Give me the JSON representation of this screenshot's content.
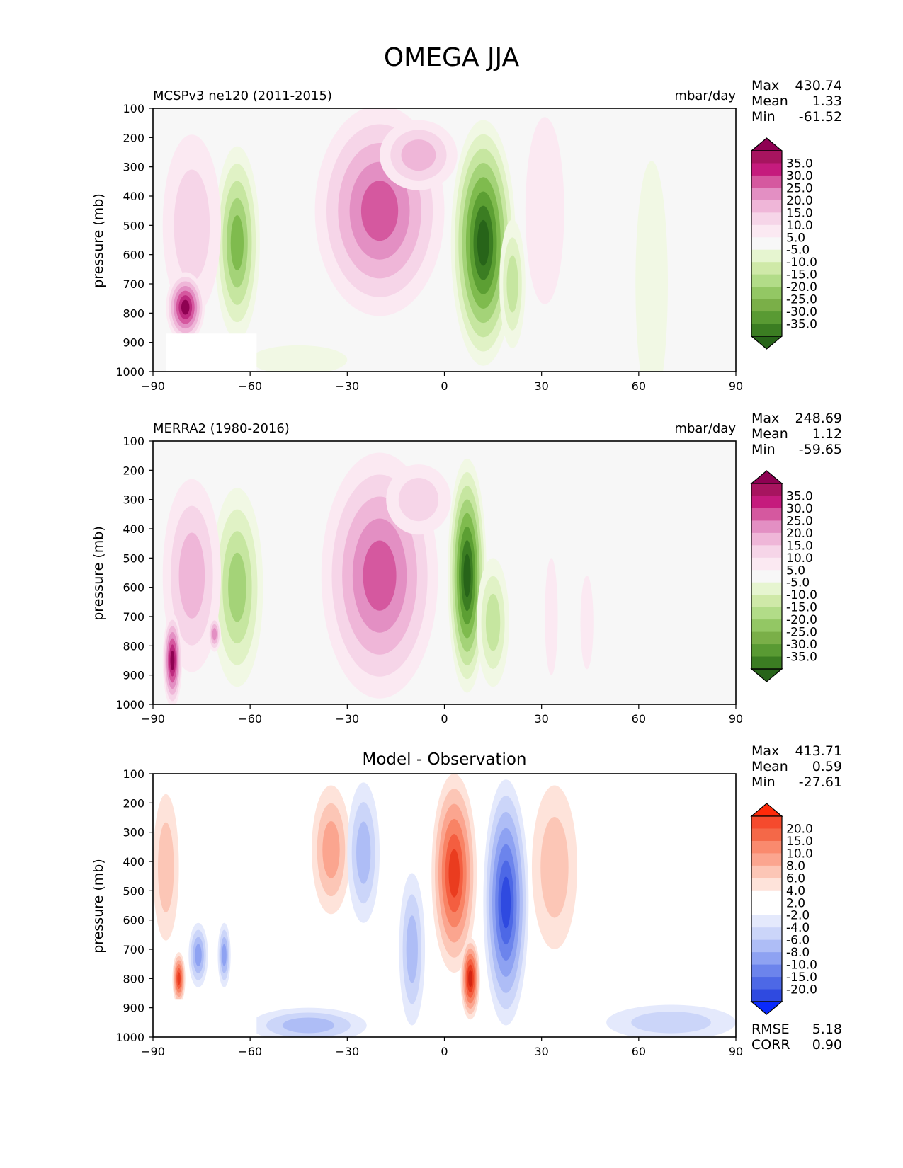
{
  "figure_title": "OMEGA JJA",
  "colors": {
    "pos_scale": [
      "#f7f7f7",
      "#fbe9f2",
      "#f6d5e8",
      "#efb6d8",
      "#e38fc3",
      "#d5589f",
      "#bd2a7f",
      "#8e0152"
    ],
    "neg_scale": [
      "#f7f7f7",
      "#f1f8e4",
      "#e0f2c5",
      "#c6e6a0",
      "#a4d378",
      "#7fbb4e",
      "#5c9f33",
      "#3b7d22",
      "#276419"
    ],
    "diff_pos_scale": [
      "#ffffff",
      "#fee3da",
      "#fcc6b6",
      "#fba58f",
      "#f88365",
      "#f45e40",
      "#ea3c1f",
      "#d42412"
    ],
    "diff_neg_scale": [
      "#ffffff",
      "#e4e9fc",
      "#cbd5f9",
      "#aebdf6",
      "#8ea2f2",
      "#6c84ec",
      "#4d68e6",
      "#2f4ae0"
    ]
  },
  "chart_data": [
    {
      "type": "contour",
      "title_left": "MCSPv3 ne120 (2011-2015)",
      "units": "mbar/day",
      "ylabel": "pressure (mb)",
      "x_ticks": [
        "−90",
        "−60",
        "−30",
        "0",
        "30",
        "60",
        "90"
      ],
      "y_ticks": [
        "100",
        "200",
        "300",
        "400",
        "500",
        "600",
        "700",
        "800",
        "900",
        "1000"
      ],
      "xlim": [
        -90,
        90
      ],
      "ylim": [
        100,
        1000
      ],
      "y_reversed": true,
      "stats": [
        {
          "label": "Max",
          "value": "430.74"
        },
        {
          "label": "Mean",
          "value": "1.33"
        },
        {
          "label": "Min",
          "value": "-61.52"
        }
      ],
      "colorbar_labels": [
        "35.0",
        "30.0",
        "25.0",
        "20.0",
        "15.0",
        "10.0",
        "5.0",
        "-5.0",
        "-10.0",
        "-15.0",
        "-20.0",
        "-25.0",
        "-30.0",
        "-35.0"
      ],
      "colorbar_colors": [
        "#8e0152",
        "#a7145f",
        "#c51b7d",
        "#d5589f",
        "#e38fc3",
        "#efb6d8",
        "#f6d5e8",
        "#fbe9f2",
        "#f7f7f7",
        "#e6f5d0",
        "#cfe9a8",
        "#b2dc88",
        "#93c764",
        "#7aaf48",
        "#599a33",
        "#3b7d22",
        "#276419"
      ],
      "features": [
        {
          "shape": "ellipse",
          "sign": "pos",
          "peak": 5,
          "lon": -20,
          "p": 450,
          "lon_half": 20,
          "p_half": 360
        },
        {
          "shape": "ellipse",
          "sign": "pos",
          "peak": 3,
          "lon": -8,
          "p": 260,
          "lon_half": 12,
          "p_half": 120
        },
        {
          "shape": "ellipse",
          "sign": "neg",
          "peak": 8,
          "lon": 12,
          "p": 560,
          "lon_half": 10,
          "p_half": 420
        },
        {
          "shape": "ellipse",
          "sign": "neg",
          "peak": 3,
          "lon": 21,
          "p": 700,
          "lon_half": 4,
          "p_half": 220
        },
        {
          "shape": "ellipse",
          "sign": "neg",
          "peak": 5,
          "lon": -64,
          "p": 560,
          "lon_half": 7,
          "p_half": 330
        },
        {
          "shape": "ellipse",
          "sign": "pos",
          "peak": 2,
          "lon": -78,
          "p": 500,
          "lon_half": 9,
          "p_half": 310
        },
        {
          "shape": "ellipse",
          "sign": "pos",
          "peak": 7,
          "lon": -80,
          "p": 780,
          "lon_half": 6,
          "p_half": 120
        },
        {
          "shape": "ellipse",
          "sign": "pos",
          "peak": 1,
          "lon": 31,
          "p": 450,
          "lon_half": 6,
          "p_half": 320
        },
        {
          "shape": "ellipse",
          "sign": "neg",
          "peak": 1,
          "lon": 64,
          "p": 700,
          "lon_half": 5,
          "p_half": 420
        },
        {
          "shape": "ellipse",
          "sign": "neg",
          "peak": 1,
          "lon": -45,
          "p": 960,
          "lon_half": 15,
          "p_half": 50
        }
      ]
    },
    {
      "type": "contour",
      "title_left": "MERRA2 (1980-2016)",
      "units": "mbar/day",
      "ylabel": "pressure (mb)",
      "x_ticks": [
        "−90",
        "−60",
        "−30",
        "0",
        "30",
        "60",
        "90"
      ],
      "y_ticks": [
        "100",
        "200",
        "300",
        "400",
        "500",
        "600",
        "700",
        "800",
        "900",
        "1000"
      ],
      "xlim": [
        -90,
        90
      ],
      "ylim": [
        100,
        1000
      ],
      "y_reversed": true,
      "stats": [
        {
          "label": "Max",
          "value": "248.69"
        },
        {
          "label": "Mean",
          "value": "1.12"
        },
        {
          "label": "Min",
          "value": "-59.65"
        }
      ],
      "colorbar_labels": [
        "35.0",
        "30.0",
        "25.0",
        "20.0",
        "15.0",
        "10.0",
        "5.0",
        "-5.0",
        "-10.0",
        "-15.0",
        "-20.0",
        "-25.0",
        "-30.0",
        "-35.0"
      ],
      "colorbar_colors": [
        "#8e0152",
        "#a7145f",
        "#c51b7d",
        "#d5589f",
        "#e38fc3",
        "#efb6d8",
        "#f6d5e8",
        "#fbe9f2",
        "#f7f7f7",
        "#e6f5d0",
        "#cfe9a8",
        "#b2dc88",
        "#93c764",
        "#7aaf48",
        "#599a33",
        "#3b7d22",
        "#276419"
      ],
      "features": [
        {
          "shape": "ellipse",
          "sign": "pos",
          "peak": 5,
          "lon": -20,
          "p": 560,
          "lon_half": 18,
          "p_half": 420
        },
        {
          "shape": "ellipse",
          "sign": "pos",
          "peak": 2,
          "lon": -8,
          "p": 300,
          "lon_half": 10,
          "p_half": 120
        },
        {
          "shape": "ellipse",
          "sign": "neg",
          "peak": 8,
          "lon": 7,
          "p": 560,
          "lon_half": 6,
          "p_half": 400
        },
        {
          "shape": "ellipse",
          "sign": "neg",
          "peak": 3,
          "lon": 15,
          "p": 720,
          "lon_half": 5,
          "p_half": 220
        },
        {
          "shape": "ellipse",
          "sign": "neg",
          "peak": 4,
          "lon": -64,
          "p": 600,
          "lon_half": 8,
          "p_half": 340
        },
        {
          "shape": "ellipse",
          "sign": "pos",
          "peak": 3,
          "lon": -78,
          "p": 560,
          "lon_half": 9,
          "p_half": 330
        },
        {
          "shape": "ellipse",
          "sign": "pos",
          "peak": 7,
          "lon": -84,
          "p": 850,
          "lon_half": 3,
          "p_half": 160
        },
        {
          "shape": "ellipse",
          "sign": "pos",
          "peak": 4,
          "lon": -71,
          "p": 760,
          "lon_half": 2,
          "p_half": 60
        },
        {
          "shape": "ellipse",
          "sign": "pos",
          "peak": 1,
          "lon": 33,
          "p": 700,
          "lon_half": 2,
          "p_half": 200
        },
        {
          "shape": "ellipse",
          "sign": "pos",
          "peak": 1,
          "lon": 44,
          "p": 720,
          "lon_half": 2,
          "p_half": 160
        }
      ]
    },
    {
      "type": "contour",
      "title_center": "Model - Observation",
      "ylabel": "pressure (mb)",
      "x_ticks": [
        "−90",
        "−60",
        "−30",
        "0",
        "30",
        "60",
        "90"
      ],
      "y_ticks": [
        "100",
        "200",
        "300",
        "400",
        "500",
        "600",
        "700",
        "800",
        "900",
        "1000"
      ],
      "xlim": [
        -90,
        90
      ],
      "ylim": [
        100,
        1000
      ],
      "y_reversed": true,
      "stats": [
        {
          "label": "Max",
          "value": "413.71"
        },
        {
          "label": "Mean",
          "value": "0.59"
        },
        {
          "label": "Min",
          "value": "-27.61"
        }
      ],
      "stats_bottom": [
        {
          "label": "RMSE",
          "value": "5.18"
        },
        {
          "label": "CORR",
          "value": "0.90"
        }
      ],
      "colorbar_labels": [
        "20.0",
        "15.0",
        "10.0",
        "8.0",
        "6.0",
        "4.0",
        "2.0",
        "-2.0",
        "-4.0",
        "-6.0",
        "-8.0",
        "-10.0",
        "-15.0",
        "-20.0"
      ],
      "colorbar_colors": [
        "#ff2a0a",
        "#f54a2d",
        "#f46848",
        "#fa8a6e",
        "#fba58f",
        "#fcc6b6",
        "#fee3da",
        "#ffffff",
        "#ffffff",
        "#e4e9fc",
        "#cbd5f9",
        "#aebdf6",
        "#8ea2f2",
        "#6c84ec",
        "#4d68e6",
        "#2f4ae0",
        "#0a2afc"
      ],
      "features": [
        {
          "shape": "ellipse",
          "sign": "pos",
          "peak": 6,
          "lon": 3,
          "p": 440,
          "lon_half": 7,
          "p_half": 340
        },
        {
          "shape": "ellipse",
          "sign": "pos",
          "peak": 7,
          "lon": 8,
          "p": 800,
          "lon_half": 3,
          "p_half": 140
        },
        {
          "shape": "ellipse",
          "sign": "neg",
          "peak": 7,
          "lon": 19,
          "p": 540,
          "lon_half": 7,
          "p_half": 420
        },
        {
          "shape": "ellipse",
          "sign": "pos",
          "peak": 3,
          "lon": -35,
          "p": 360,
          "lon_half": 6,
          "p_half": 220
        },
        {
          "shape": "ellipse",
          "sign": "neg",
          "peak": 3,
          "lon": -25,
          "p": 370,
          "lon_half": 5,
          "p_half": 240
        },
        {
          "shape": "ellipse",
          "sign": "neg",
          "peak": 3,
          "lon": -10,
          "p": 700,
          "lon_half": 4,
          "p_half": 260
        },
        {
          "shape": "ellipse",
          "sign": "pos",
          "peak": 2,
          "lon": 34,
          "p": 420,
          "lon_half": 7,
          "p_half": 280
        },
        {
          "shape": "ellipse",
          "sign": "neg",
          "peak": 3,
          "lon": -42,
          "p": 960,
          "lon_half": 18,
          "p_half": 60
        },
        {
          "shape": "ellipse",
          "sign": "neg",
          "peak": 2,
          "lon": 70,
          "p": 950,
          "lon_half": 20,
          "p_half": 60
        },
        {
          "shape": "ellipse",
          "sign": "pos",
          "peak": 2,
          "lon": -86,
          "p": 420,
          "lon_half": 4,
          "p_half": 250
        },
        {
          "shape": "ellipse",
          "sign": "pos",
          "peak": 6,
          "lon": -82,
          "p": 800,
          "lon_half": 2,
          "p_half": 90
        },
        {
          "shape": "ellipse",
          "sign": "neg",
          "peak": 4,
          "lon": -76,
          "p": 720,
          "lon_half": 3,
          "p_half": 110
        },
        {
          "shape": "ellipse",
          "sign": "neg",
          "peak": 4,
          "lon": -68,
          "p": 720,
          "lon_half": 2,
          "p_half": 110
        }
      ]
    }
  ]
}
